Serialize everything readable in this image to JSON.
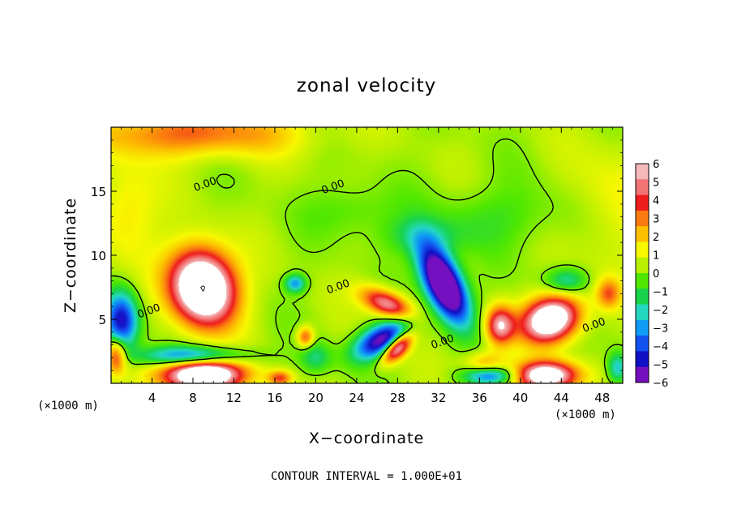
{
  "chart_data": {
    "type": "heatmap",
    "title": "zonal velocity",
    "xlabel": "X−coordinate",
    "ylabel": "Z−coordinate",
    "x_unit_left": "(×1000 m)",
    "x_unit_right": "(×1000 m)",
    "xlim": [
      0,
      50
    ],
    "ylim": [
      0,
      20
    ],
    "x_ticks": [
      4,
      8,
      12,
      16,
      20,
      24,
      28,
      32,
      36,
      40,
      44,
      48
    ],
    "x_tick_labels": [
      "4",
      "8",
      "12",
      "16",
      "20",
      "24",
      "28",
      "32",
      "36",
      "40",
      "44",
      "48"
    ],
    "y_ticks": [
      5,
      10,
      15
    ],
    "y_tick_labels": [
      "5",
      "10",
      "15"
    ],
    "colorbar": {
      "min": -6,
      "max": 6,
      "tick_labels": [
        "6",
        "5",
        "4",
        "3",
        "2",
        "1",
        "0",
        "−1",
        "−2",
        "−3",
        "−4",
        "−5",
        "−6"
      ],
      "colors": [
        "#f6b8b8",
        "#f27474",
        "#ee1c1c",
        "#fb7a10",
        "#fcc000",
        "#f8f800",
        "#b8f000",
        "#50e800",
        "#18d44c",
        "#24d8c0",
        "#0e9cf6",
        "#1452f0",
        "#1010c4",
        "#7410c0"
      ]
    },
    "contour_labels": [
      {
        "text": "0.00",
        "x": 9.3,
        "y": 15.3
      },
      {
        "text": "0.00",
        "x": 21.8,
        "y": 15.1
      },
      {
        "text": "0.00",
        "x": 22.3,
        "y": 7.3
      },
      {
        "text": "0.00",
        "x": 3.8,
        "y": 5.4
      },
      {
        "text": "0.00",
        "x": 32.5,
        "y": 3.0
      },
      {
        "text": "0.00",
        "x": 47.3,
        "y": 4.3
      }
    ],
    "blobs": [
      {
        "x": 9,
        "y": 7.5,
        "amp": 10,
        "rx": 3.2,
        "ry": 2.8,
        "rot": -0.5
      },
      {
        "x": 9,
        "y": 0.7,
        "amp": 9.5,
        "rx": 3.8,
        "ry": 1.3,
        "rot": 0
      },
      {
        "x": 43,
        "y": 5,
        "amp": 8.5,
        "rx": 2.8,
        "ry": 1.7,
        "rot": 0.2
      },
      {
        "x": 42.5,
        "y": 0.6,
        "amp": 8,
        "rx": 3,
        "ry": 1.1,
        "rot": 0
      },
      {
        "x": 28,
        "y": 2.8,
        "amp": 7,
        "rx": 1.7,
        "ry": 0.8,
        "rot": 0.6
      },
      {
        "x": 27,
        "y": 6.2,
        "amp": 5.5,
        "rx": 2.6,
        "ry": 1,
        "rot": -0.3
      },
      {
        "x": 38,
        "y": 4.5,
        "amp": 5.5,
        "rx": 1.4,
        "ry": 1.5,
        "rot": 0
      },
      {
        "x": 19,
        "y": 3.6,
        "amp": 3.5,
        "rx": 0.8,
        "ry": 0.8,
        "rot": 0
      },
      {
        "x": 16.5,
        "y": 0.4,
        "amp": 3.5,
        "rx": 1.2,
        "ry": 0.6,
        "rot": 0
      },
      {
        "x": 0.5,
        "y": 2.2,
        "amp": 4.5,
        "rx": 1,
        "ry": 1.4,
        "rot": 0
      },
      {
        "x": 48.6,
        "y": 7,
        "amp": 3,
        "rx": 1.2,
        "ry": 1.2,
        "rot": 0
      },
      {
        "x": 36.5,
        "y": 1.5,
        "amp": 2.5,
        "rx": 2,
        "ry": 1,
        "rot": 0
      },
      {
        "x": 32.5,
        "y": 7.8,
        "amp": -10,
        "rx": 1.6,
        "ry": 3.3,
        "rot": 0.6
      },
      {
        "x": 26.5,
        "y": 3.4,
        "amp": -6.5,
        "rx": 2.8,
        "ry": 1.2,
        "rot": 0.35
      },
      {
        "x": 1,
        "y": 4.8,
        "amp": -5.5,
        "rx": 1.6,
        "ry": 2.3,
        "rot": 0
      },
      {
        "x": 8,
        "y": 2.1,
        "amp": -5,
        "rx": 5,
        "ry": 0.8,
        "rot": 0
      },
      {
        "x": 18,
        "y": 7.8,
        "amp": -3.5,
        "rx": 1,
        "ry": 0.7,
        "rot": 0
      },
      {
        "x": 37,
        "y": 0.6,
        "amp": -4.5,
        "rx": 2.5,
        "ry": 0.7,
        "rot": 0
      },
      {
        "x": 44.5,
        "y": 8,
        "amp": -2.5,
        "rx": 2,
        "ry": 1,
        "rot": 0
      },
      {
        "x": 49.5,
        "y": 1.2,
        "amp": -3,
        "rx": 1,
        "ry": 1.2,
        "rot": 0
      },
      {
        "x": 30.5,
        "y": 11.5,
        "amp": -1.5,
        "rx": 4,
        "ry": 1.5,
        "rot": 0
      },
      {
        "x": 20,
        "y": 2,
        "amp": -2,
        "rx": 1.5,
        "ry": 1.2,
        "rot": 0
      },
      {
        "x": 23.5,
        "y": 13.5,
        "amp": -1,
        "rx": 4,
        "ry": 2,
        "rot": 0
      },
      {
        "x": 38,
        "y": 13,
        "amp": -1,
        "rx": 7,
        "ry": 2.5,
        "rot": 0
      }
    ]
  },
  "footer": {
    "contour_interval": "CONTOUR INTERVAL = 1.000E+01"
  }
}
